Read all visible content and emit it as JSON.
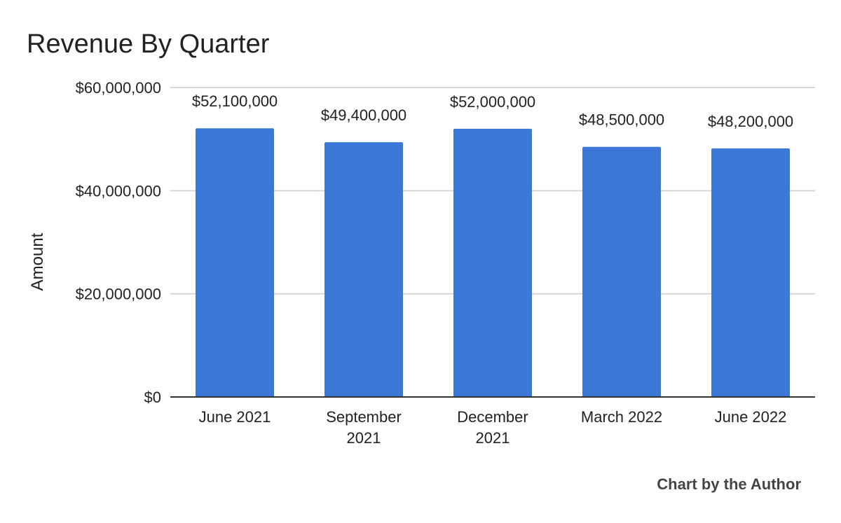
{
  "chart_data": {
    "type": "bar",
    "title": "Revenue By Quarter",
    "xlabel": "",
    "ylabel": "Amount",
    "categories": [
      [
        "June 2021"
      ],
      [
        "September",
        "2021"
      ],
      [
        "December",
        "2021"
      ],
      [
        "March 2022"
      ],
      [
        "June 2022"
      ]
    ],
    "values": [
      52100000,
      49400000,
      52000000,
      48500000,
      48200000
    ],
    "data_labels": [
      "$52,100,000",
      "$49,400,000",
      "$52,000,000",
      "$48,500,000",
      "$48,200,000"
    ],
    "ylim": [
      0,
      60000000
    ],
    "yticks": [
      0,
      20000000,
      40000000,
      60000000
    ],
    "ytick_labels": [
      "$0",
      "$20,000,000",
      "$40,000,000",
      "$60,000,000"
    ],
    "grid": true,
    "legend": "none",
    "bar_color": "#3c78d8",
    "axis_color": "#333333",
    "grid_color": "#cccccc",
    "text_color": "#222222",
    "footer": "Chart by the Author"
  }
}
